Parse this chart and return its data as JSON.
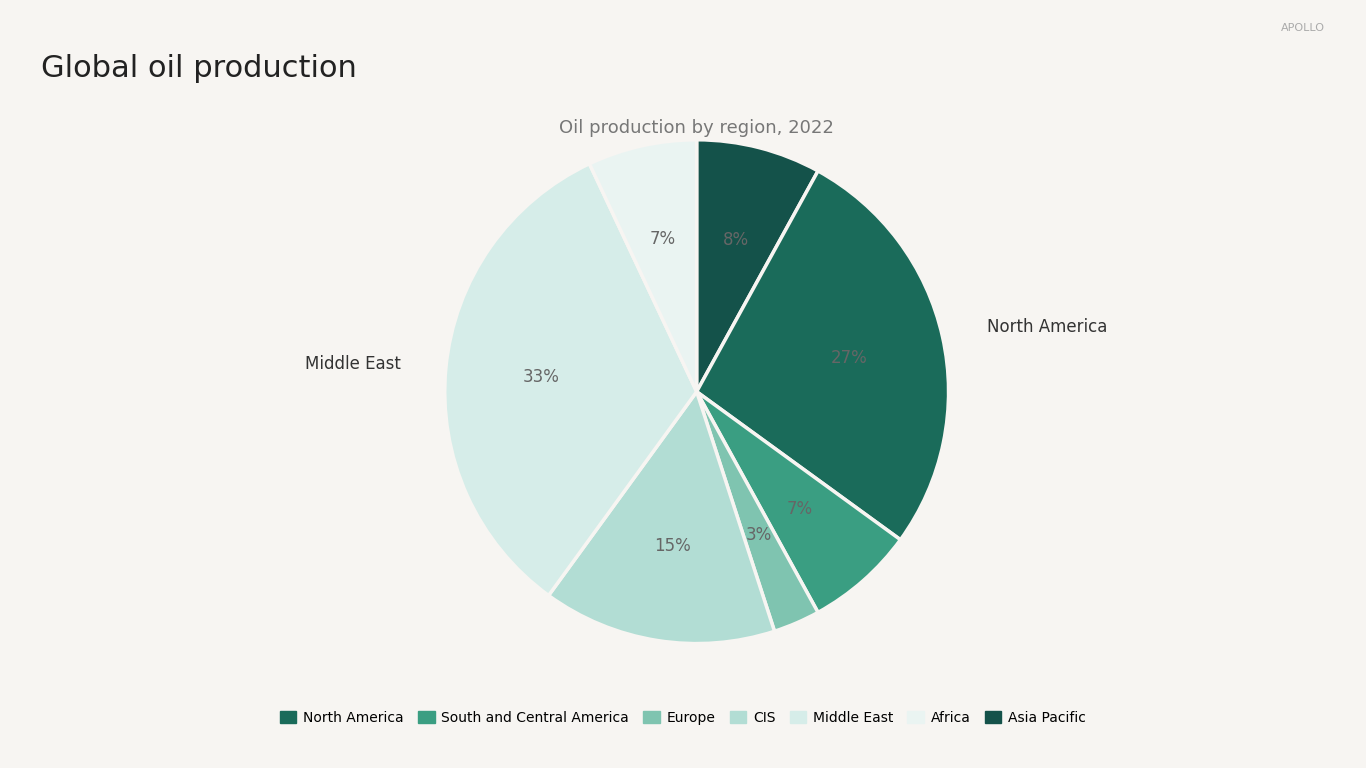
{
  "title": "Global oil production",
  "subtitle": "Oil production by region, 2022",
  "branding": "APOLLO",
  "background_color": "#f7f5f2",
  "regions": [
    "North America",
    "South and Central America",
    "Europe",
    "CIS",
    "Middle East",
    "Africa",
    "Asia Pacific"
  ],
  "values": [
    27,
    7,
    3,
    15,
    33,
    7,
    8
  ],
  "colors": [
    "#1a6b5a",
    "#3a9e82",
    "#7fc4b0",
    "#b2ddd4",
    "#d6ede9",
    "#eaf4f2",
    "#14524a"
  ],
  "pct_labels": [
    "27%",
    "7%",
    "3%",
    "15%",
    "33%",
    "7%",
    "8%"
  ],
  "title_fontsize": 22,
  "subtitle_fontsize": 13,
  "legend_fontsize": 10,
  "text_color": "#777777",
  "title_color": "#222222",
  "branding_color": "#aaaaaa",
  "pct_label_color": "#666666",
  "region_label_color": "#333333",
  "figsize": [
    13.66,
    7.68
  ],
  "dpi": 100
}
